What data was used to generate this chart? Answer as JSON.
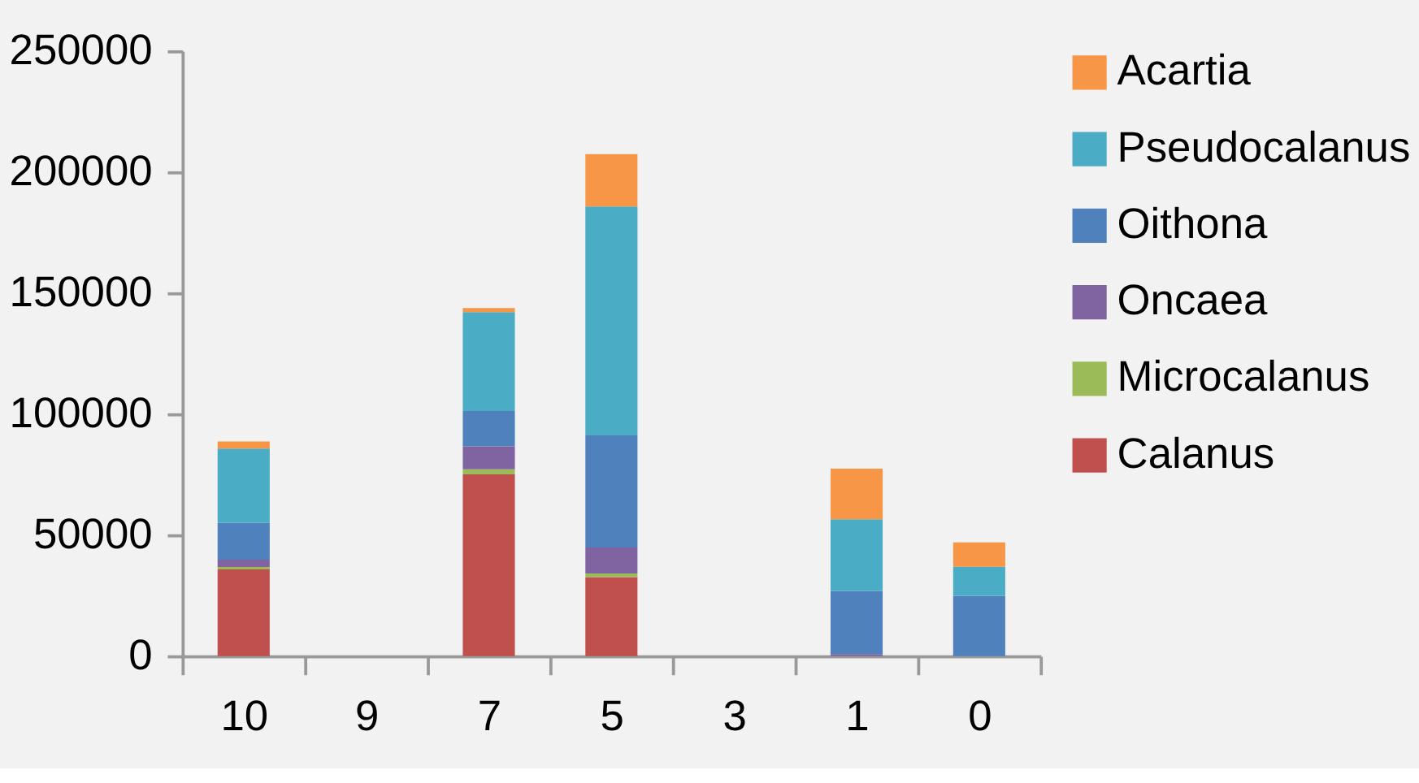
{
  "chart_data": {
    "type": "bar",
    "stacked": true,
    "categories": [
      "10",
      "9",
      "7",
      "5",
      "3",
      "1",
      "0"
    ],
    "series": [
      {
        "name": "Calanus",
        "color": "#c0504d",
        "values": [
          35800,
          0,
          75100,
          32600,
          0,
          0,
          0
        ]
      },
      {
        "name": "Microcalanus",
        "color": "#9bbb59",
        "values": [
          1000,
          0,
          2100,
          1500,
          0,
          0,
          0
        ]
      },
      {
        "name": "Oncaea",
        "color": "#8064a2",
        "values": [
          3000,
          0,
          9500,
          10800,
          0,
          800,
          0
        ]
      },
      {
        "name": "Oithona",
        "color": "#4f81bd",
        "values": [
          15200,
          0,
          14600,
          46300,
          0,
          26000,
          24900
        ]
      },
      {
        "name": "Pseudocalanus",
        "color": "#4bacc6",
        "values": [
          30700,
          0,
          40800,
          94600,
          0,
          29700,
          12000
        ]
      },
      {
        "name": "Acartia",
        "color": "#f79646",
        "values": [
          3000,
          0,
          1700,
          21600,
          0,
          20900,
          10100
        ]
      }
    ],
    "ylim": [
      0,
      250000
    ],
    "yticks": [
      0,
      50000,
      100000,
      150000,
      200000,
      250000
    ],
    "grid": false,
    "legend": "right"
  }
}
